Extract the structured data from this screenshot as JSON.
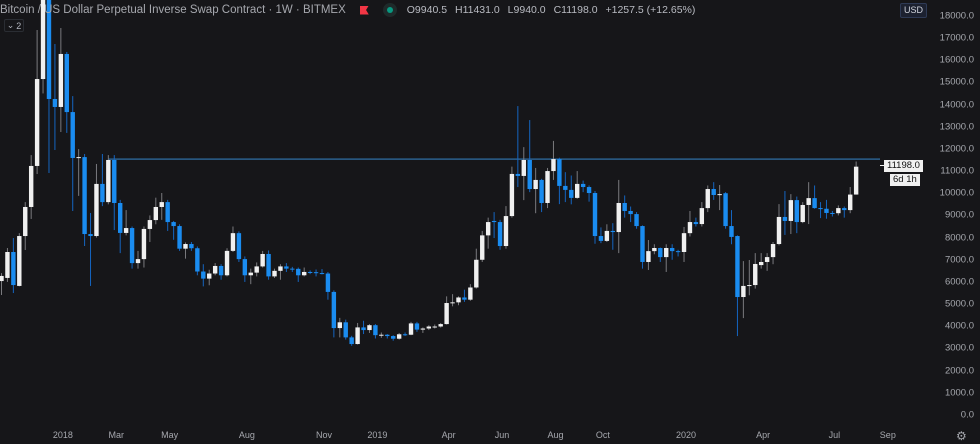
{
  "header": {
    "title": "Bitcoin / US Dollar Perpetual Inverse Swap Contract · 1W · BITMEX",
    "flag_color": "#f23645",
    "status_dot_color": "#089981",
    "ohlc": {
      "open": "O9940.5",
      "high": "H11431.0",
      "low": "L9940.0",
      "close": "C11198.0",
      "change": "+1257.5 (+12.65%)"
    },
    "collapse_count": "2",
    "currency": "USD"
  },
  "price_tag": "11198.0",
  "countdown": "6d 1h",
  "colors": {
    "background": "#161619",
    "up": "#f0f0f0",
    "down": "#1a8cf0",
    "up_wick": "#7a7a7e",
    "down_wick": "#1565c0",
    "hline": "#2b5f8e"
  },
  "chart_data": {
    "type": "candlestick",
    "interval": "1W",
    "ylim": [
      0,
      18000
    ],
    "y_ticks": [
      "0.0",
      "1000.0",
      "2000.0",
      "3000.0",
      "4000.0",
      "5000.0",
      "6000.0",
      "7000.0",
      "8000.0",
      "9000.0",
      "10000.0",
      "11000.0",
      "12000.0",
      "13000.0",
      "14000.0",
      "15000.0",
      "16000.0",
      "17000.0",
      "18000.0"
    ],
    "x_ticks": [
      {
        "label": "2018",
        "index": 10
      },
      {
        "label": "Mar",
        "index": 19
      },
      {
        "label": "May",
        "index": 28
      },
      {
        "label": "Aug",
        "index": 41
      },
      {
        "label": "Nov",
        "index": 54
      },
      {
        "label": "2019",
        "index": 63
      },
      {
        "label": "Apr",
        "index": 75
      },
      {
        "label": "Jun",
        "index": 84
      },
      {
        "label": "Aug",
        "index": 93
      },
      {
        "label": "Oct",
        "index": 101
      },
      {
        "label": "2020",
        "index": 115
      },
      {
        "label": "Apr",
        "index": 128
      },
      {
        "label": "Jul",
        "index": 140
      },
      {
        "label": "Sep",
        "index": 149
      }
    ],
    "horizontal_line": 11540,
    "ohlc": [
      [
        6040,
        6400,
        5410,
        6270
      ],
      [
        6180,
        7530,
        6000,
        7350
      ],
      [
        7350,
        7980,
        5500,
        5860
      ],
      [
        5820,
        8200,
        5800,
        8070
      ],
      [
        8070,
        9600,
        7440,
        9380
      ],
      [
        9380,
        11720,
        8840,
        11230
      ],
      [
        11230,
        17360,
        10870,
        15150
      ],
      [
        15150,
        19800,
        14500,
        18900
      ],
      [
        18900,
        19500,
        10910,
        14250
      ],
      [
        14250,
        16730,
        11950,
        13890
      ],
      [
        13890,
        17450,
        12760,
        16280
      ],
      [
        16280,
        16370,
        12720,
        13660
      ],
      [
        13660,
        14380,
        9200,
        11590
      ],
      [
        11590,
        11990,
        9880,
        11630
      ],
      [
        11630,
        11770,
        7620,
        8160
      ],
      [
        8160,
        9110,
        5820,
        8070
      ],
      [
        8070,
        11320,
        8000,
        10420
      ],
      [
        10420,
        11770,
        9420,
        9600
      ],
      [
        9600,
        11720,
        9500,
        11500
      ],
      [
        11500,
        11720,
        8340,
        9560
      ],
      [
        9560,
        9700,
        7300,
        8210
      ],
      [
        8210,
        9240,
        8100,
        8430
      ],
      [
        8430,
        8500,
        6600,
        6850
      ],
      [
        6850,
        7400,
        6600,
        7030
      ],
      [
        7030,
        8500,
        6650,
        8390
      ],
      [
        8390,
        9000,
        7800,
        8790
      ],
      [
        8790,
        9800,
        8600,
        9380
      ],
      [
        9380,
        10010,
        8800,
        9600
      ],
      [
        9600,
        9700,
        8300,
        8700
      ],
      [
        8700,
        8750,
        7900,
        8520
      ],
      [
        8520,
        8600,
        7400,
        7500
      ],
      [
        7500,
        7780,
        7050,
        7710
      ],
      [
        7710,
        7800,
        7400,
        7520
      ],
      [
        7520,
        7600,
        6300,
        6470
      ],
      [
        6470,
        6800,
        5800,
        6150
      ],
      [
        6150,
        6550,
        5850,
        6380
      ],
      [
        6380,
        6850,
        6300,
        6720
      ],
      [
        6720,
        6800,
        6100,
        6300
      ],
      [
        6300,
        7520,
        6250,
        7400
      ],
      [
        7400,
        8500,
        7350,
        8200
      ],
      [
        8200,
        8280,
        6900,
        7030
      ],
      [
        7030,
        7150,
        6000,
        6300
      ],
      [
        6300,
        6600,
        5900,
        6420
      ],
      [
        6420,
        6880,
        6250,
        6700
      ],
      [
        6700,
        7400,
        6650,
        7260
      ],
      [
        7260,
        7420,
        6100,
        6250
      ],
      [
        6250,
        6600,
        6180,
        6500
      ],
      [
        6500,
        6800,
        6100,
        6700
      ],
      [
        6700,
        6850,
        6450,
        6600
      ],
      [
        6600,
        6680,
        6450,
        6590
      ],
      [
        6590,
        6650,
        6000,
        6300
      ],
      [
        6300,
        6650,
        6250,
        6450
      ],
      [
        6450,
        6520,
        6350,
        6440
      ],
      [
        6440,
        6560,
        6250,
        6400
      ],
      [
        6400,
        6580,
        6340,
        6380
      ],
      [
        6380,
        6450,
        5200,
        5550
      ],
      [
        5550,
        5620,
        3500,
        3920
      ],
      [
        3920,
        4380,
        3500,
        4180
      ],
      [
        4180,
        4300,
        3400,
        3500
      ],
      [
        3500,
        3570,
        3120,
        3200
      ],
      [
        3200,
        4150,
        3180,
        3950
      ],
      [
        3950,
        4250,
        3650,
        3830
      ],
      [
        3830,
        4100,
        3700,
        4050
      ],
      [
        4050,
        4100,
        3450,
        3600
      ],
      [
        3600,
        3720,
        3480,
        3620
      ],
      [
        3620,
        3650,
        3450,
        3560
      ],
      [
        3560,
        3600,
        3350,
        3440
      ],
      [
        3440,
        3700,
        3400,
        3640
      ],
      [
        3640,
        3720,
        3560,
        3620
      ],
      [
        3620,
        4200,
        3600,
        4130
      ],
      [
        4130,
        4200,
        3750,
        3850
      ],
      [
        3850,
        3950,
        3700,
        3900
      ],
      [
        3900,
        4050,
        3830,
        3990
      ],
      [
        3990,
        4080,
        3900,
        3990
      ],
      [
        3990,
        4150,
        3940,
        4100
      ],
      [
        4100,
        5350,
        4080,
        5050
      ],
      [
        5050,
        5450,
        4900,
        5080
      ],
      [
        5080,
        5350,
        4950,
        5300
      ],
      [
        5300,
        5650,
        5100,
        5200
      ],
      [
        5200,
        5900,
        5150,
        5750
      ],
      [
        5750,
        7500,
        5700,
        7000
      ],
      [
        7000,
        8300,
        6900,
        8100
      ],
      [
        8100,
        8900,
        7500,
        8700
      ],
      [
        8750,
        9150,
        7980,
        8700
      ],
      [
        8700,
        8800,
        7450,
        7620
      ],
      [
        7620,
        9420,
        7500,
        8970
      ],
      [
        8970,
        11200,
        8900,
        10870
      ],
      [
        10870,
        13930,
        10280,
        10780
      ],
      [
        10780,
        12080,
        9690,
        11500
      ],
      [
        11500,
        13300,
        10050,
        10190
      ],
      [
        10190,
        11140,
        9100,
        10600
      ],
      [
        10600,
        10650,
        9150,
        9560
      ],
      [
        9560,
        11140,
        9330,
        11000
      ],
      [
        11000,
        12360,
        10600,
        11540
      ],
      [
        11540,
        11600,
        9510,
        10330
      ],
      [
        10330,
        10950,
        9600,
        10150
      ],
      [
        10150,
        10800,
        9500,
        9790
      ],
      [
        9790,
        11000,
        9750,
        10420
      ],
      [
        10420,
        10570,
        10050,
        10280
      ],
      [
        10280,
        10350,
        9620,
        10010
      ],
      [
        10010,
        10100,
        7720,
        8070
      ],
      [
        8070,
        8460,
        7750,
        7850
      ],
      [
        7850,
        8600,
        7800,
        8300
      ],
      [
        8300,
        8650,
        7450,
        8250
      ],
      [
        8250,
        10600,
        7300,
        9560
      ],
      [
        9560,
        9900,
        8900,
        9200
      ],
      [
        9200,
        9400,
        8700,
        9060
      ],
      [
        9060,
        9150,
        8400,
        8520
      ],
      [
        8520,
        8550,
        6600,
        6900
      ],
      [
        6900,
        7890,
        6540,
        7390
      ],
      [
        7390,
        7700,
        7250,
        7530
      ],
      [
        7530,
        7550,
        6900,
        7120
      ],
      [
        7120,
        7700,
        6450,
        7530
      ],
      [
        7530,
        7700,
        7000,
        7390
      ],
      [
        7390,
        7450,
        7150,
        7350
      ],
      [
        7350,
        8480,
        6900,
        8200
      ],
      [
        8200,
        9200,
        8050,
        8700
      ],
      [
        8700,
        8900,
        8500,
        8610
      ],
      [
        8610,
        9600,
        8500,
        9330
      ],
      [
        9330,
        10350,
        9150,
        10190
      ],
      [
        10190,
        10500,
        9700,
        9920
      ],
      [
        9920,
        10370,
        9240,
        9960
      ],
      [
        10000,
        10050,
        8400,
        8520
      ],
      [
        8520,
        9240,
        7700,
        8030
      ],
      [
        8070,
        8100,
        3560,
        5320
      ],
      [
        5320,
        6940,
        4370,
        5820
      ],
      [
        5820,
        6990,
        5400,
        5860
      ],
      [
        5860,
        7300,
        5700,
        6810
      ],
      [
        6760,
        7300,
        6600,
        6900
      ],
      [
        6900,
        7300,
        6500,
        7120
      ],
      [
        7120,
        7800,
        6800,
        7710
      ],
      [
        7710,
        9510,
        7650,
        8930
      ],
      [
        8930,
        10100,
        8120,
        8750
      ],
      [
        8750,
        9960,
        8160,
        9690
      ],
      [
        9690,
        9850,
        8200,
        8700
      ],
      [
        8700,
        9600,
        8650,
        9470
      ],
      [
        9470,
        10500,
        8610,
        9780
      ],
      [
        9780,
        10350,
        9300,
        9330
      ],
      [
        9330,
        9600,
        8880,
        9300
      ],
      [
        9300,
        9700,
        8850,
        9110
      ],
      [
        9110,
        9200,
        8950,
        9100
      ],
      [
        9100,
        9450,
        9000,
        9330
      ],
      [
        9330,
        9400,
        8900,
        9240
      ],
      [
        9240,
        10280,
        9100,
        9940
      ],
      [
        9940.5,
        11431,
        9940,
        11198
      ]
    ]
  }
}
